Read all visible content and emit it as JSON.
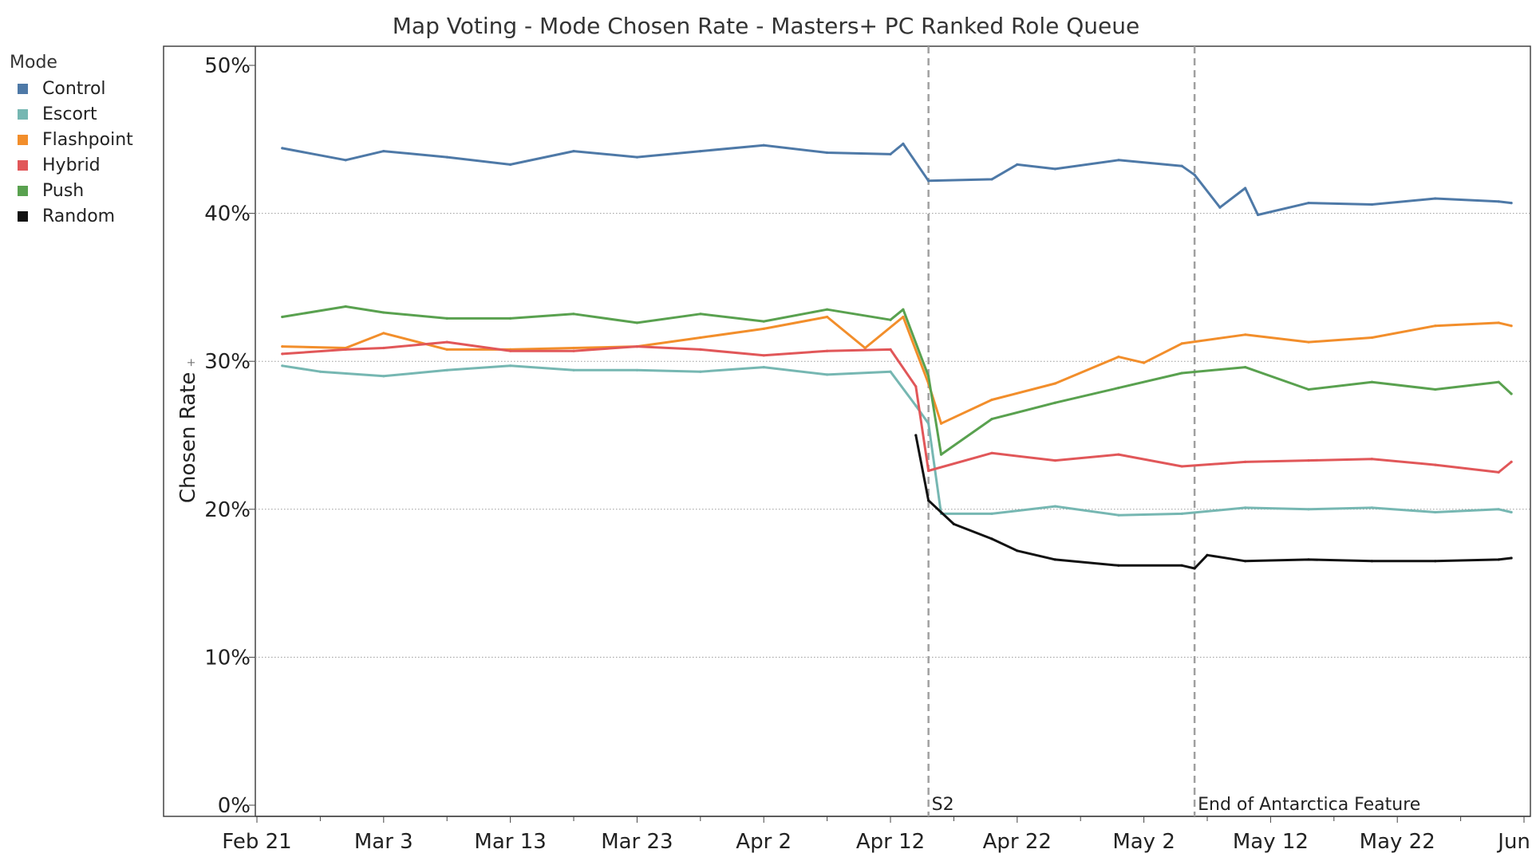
{
  "chart_data": {
    "type": "line",
    "title": "Map Voting - Mode Chosen Rate - Masters+ PC Ranked Role Queue",
    "xlabel": "",
    "ylabel": "Chosen Rate",
    "ylabel_indicator": "+",
    "legend_title": "Mode",
    "legend_position": "left",
    "ylim": [
      0,
      50
    ],
    "yticks": [
      "0%",
      "10%",
      "20%",
      "30%",
      "40%",
      "50%"
    ],
    "yticks_values": [
      0,
      10,
      20,
      30,
      40,
      50
    ],
    "grid": true,
    "x_tick_labels": [
      "Feb 21",
      "Mar 3",
      "Mar 13",
      "Mar 23",
      "Apr 2",
      "Apr 12",
      "Apr 22",
      "May 2",
      "May 12",
      "May 22",
      "Jun 1"
    ],
    "x_start": "2023-02-21",
    "x_end": "2023-06-01",
    "annotations": [
      {
        "label": "S2",
        "x": "2023-04-15"
      },
      {
        "label": "End of Antarctica Feature",
        "x": "2023-05-06"
      }
    ],
    "series": [
      {
        "name": "Control",
        "color": "#4e79a7",
        "points": [
          [
            "2023-02-23",
            44.4
          ],
          [
            "2023-02-28",
            43.6
          ],
          [
            "2023-03-03",
            44.2
          ],
          [
            "2023-03-08",
            43.8
          ],
          [
            "2023-03-13",
            43.3
          ],
          [
            "2023-03-18",
            44.2
          ],
          [
            "2023-03-23",
            43.8
          ],
          [
            "2023-03-28",
            44.2
          ],
          [
            "2023-04-02",
            44.6
          ],
          [
            "2023-04-07",
            44.1
          ],
          [
            "2023-04-12",
            44.0
          ],
          [
            "2023-04-13",
            44.7
          ],
          [
            "2023-04-15",
            42.2
          ],
          [
            "2023-04-20",
            42.3
          ],
          [
            "2023-04-22",
            43.3
          ],
          [
            "2023-04-25",
            43.0
          ],
          [
            "2023-04-30",
            43.6
          ],
          [
            "2023-05-05",
            43.2
          ],
          [
            "2023-05-06",
            42.6
          ],
          [
            "2023-05-08",
            40.4
          ],
          [
            "2023-05-10",
            41.7
          ],
          [
            "2023-05-11",
            39.9
          ],
          [
            "2023-05-15",
            40.7
          ],
          [
            "2023-05-20",
            40.6
          ],
          [
            "2023-05-25",
            41.0
          ],
          [
            "2023-05-30",
            40.8
          ],
          [
            "2023-05-31",
            40.7
          ]
        ]
      },
      {
        "name": "Escort",
        "color": "#76b7b2",
        "points": [
          [
            "2023-02-23",
            29.7
          ],
          [
            "2023-02-26",
            29.3
          ],
          [
            "2023-03-03",
            29.0
          ],
          [
            "2023-03-08",
            29.4
          ],
          [
            "2023-03-13",
            29.7
          ],
          [
            "2023-03-18",
            29.4
          ],
          [
            "2023-03-23",
            29.4
          ],
          [
            "2023-03-28",
            29.3
          ],
          [
            "2023-04-02",
            29.6
          ],
          [
            "2023-04-07",
            29.1
          ],
          [
            "2023-04-12",
            29.3
          ],
          [
            "2023-04-14",
            27.0
          ],
          [
            "2023-04-15",
            25.8
          ],
          [
            "2023-04-16",
            19.7
          ],
          [
            "2023-04-20",
            19.7
          ],
          [
            "2023-04-25",
            20.2
          ],
          [
            "2023-04-30",
            19.6
          ],
          [
            "2023-05-05",
            19.7
          ],
          [
            "2023-05-10",
            20.1
          ],
          [
            "2023-05-15",
            20.0
          ],
          [
            "2023-05-20",
            20.1
          ],
          [
            "2023-05-25",
            19.8
          ],
          [
            "2023-05-30",
            20.0
          ],
          [
            "2023-05-31",
            19.8
          ]
        ]
      },
      {
        "name": "Flashpoint",
        "color": "#f28e2b",
        "points": [
          [
            "2023-02-23",
            31.0
          ],
          [
            "2023-02-28",
            30.9
          ],
          [
            "2023-03-03",
            31.9
          ],
          [
            "2023-03-08",
            30.8
          ],
          [
            "2023-03-13",
            30.8
          ],
          [
            "2023-03-18",
            30.9
          ],
          [
            "2023-03-23",
            31.0
          ],
          [
            "2023-03-28",
            31.6
          ],
          [
            "2023-04-02",
            32.2
          ],
          [
            "2023-04-07",
            33.0
          ],
          [
            "2023-04-10",
            30.9
          ],
          [
            "2023-04-13",
            33.0
          ],
          [
            "2023-04-15",
            28.5
          ],
          [
            "2023-04-16",
            25.8
          ],
          [
            "2023-04-20",
            27.4
          ],
          [
            "2023-04-25",
            28.5
          ],
          [
            "2023-04-30",
            30.3
          ],
          [
            "2023-05-02",
            29.9
          ],
          [
            "2023-05-05",
            31.2
          ],
          [
            "2023-05-10",
            31.8
          ],
          [
            "2023-05-15",
            31.3
          ],
          [
            "2023-05-20",
            31.6
          ],
          [
            "2023-05-25",
            32.4
          ],
          [
            "2023-05-30",
            32.6
          ],
          [
            "2023-05-31",
            32.4
          ]
        ]
      },
      {
        "name": "Hybrid",
        "color": "#e15759",
        "points": [
          [
            "2023-02-23",
            30.5
          ],
          [
            "2023-02-28",
            30.8
          ],
          [
            "2023-03-03",
            30.9
          ],
          [
            "2023-03-08",
            31.3
          ],
          [
            "2023-03-13",
            30.7
          ],
          [
            "2023-03-18",
            30.7
          ],
          [
            "2023-03-23",
            31.0
          ],
          [
            "2023-03-28",
            30.8
          ],
          [
            "2023-04-02",
            30.4
          ],
          [
            "2023-04-07",
            30.7
          ],
          [
            "2023-04-12",
            30.8
          ],
          [
            "2023-04-14",
            28.3
          ],
          [
            "2023-04-15",
            22.6
          ],
          [
            "2023-04-20",
            23.8
          ],
          [
            "2023-04-25",
            23.3
          ],
          [
            "2023-04-30",
            23.7
          ],
          [
            "2023-05-05",
            22.9
          ],
          [
            "2023-05-10",
            23.2
          ],
          [
            "2023-05-15",
            23.3
          ],
          [
            "2023-05-20",
            23.4
          ],
          [
            "2023-05-25",
            23.0
          ],
          [
            "2023-05-30",
            22.5
          ],
          [
            "2023-05-31",
            23.2
          ]
        ]
      },
      {
        "name": "Push",
        "color": "#59a14f",
        "points": [
          [
            "2023-02-23",
            33.0
          ],
          [
            "2023-02-28",
            33.7
          ],
          [
            "2023-03-03",
            33.3
          ],
          [
            "2023-03-08",
            32.9
          ],
          [
            "2023-03-13",
            32.9
          ],
          [
            "2023-03-18",
            33.2
          ],
          [
            "2023-03-23",
            32.6
          ],
          [
            "2023-03-28",
            33.2
          ],
          [
            "2023-04-02",
            32.7
          ],
          [
            "2023-04-07",
            33.5
          ],
          [
            "2023-04-12",
            32.8
          ],
          [
            "2023-04-13",
            33.5
          ],
          [
            "2023-04-15",
            29.0
          ],
          [
            "2023-04-16",
            23.7
          ],
          [
            "2023-04-20",
            26.1
          ],
          [
            "2023-04-25",
            27.2
          ],
          [
            "2023-04-30",
            28.2
          ],
          [
            "2023-05-05",
            29.2
          ],
          [
            "2023-05-10",
            29.6
          ],
          [
            "2023-05-15",
            28.1
          ],
          [
            "2023-05-20",
            28.6
          ],
          [
            "2023-05-25",
            28.1
          ],
          [
            "2023-05-30",
            28.6
          ],
          [
            "2023-05-31",
            27.8
          ]
        ]
      },
      {
        "name": "Random",
        "color": "#111111",
        "points": [
          [
            "2023-04-14",
            25.0
          ],
          [
            "2023-04-15",
            20.6
          ],
          [
            "2023-04-17",
            19.0
          ],
          [
            "2023-04-20",
            18.0
          ],
          [
            "2023-04-22",
            17.2
          ],
          [
            "2023-04-25",
            16.6
          ],
          [
            "2023-04-30",
            16.2
          ],
          [
            "2023-05-05",
            16.2
          ],
          [
            "2023-05-06",
            16.0
          ],
          [
            "2023-05-07",
            16.9
          ],
          [
            "2023-05-10",
            16.5
          ],
          [
            "2023-05-15",
            16.6
          ],
          [
            "2023-05-20",
            16.5
          ],
          [
            "2023-05-25",
            16.5
          ],
          [
            "2023-05-30",
            16.6
          ],
          [
            "2023-05-31",
            16.7
          ]
        ]
      }
    ]
  }
}
